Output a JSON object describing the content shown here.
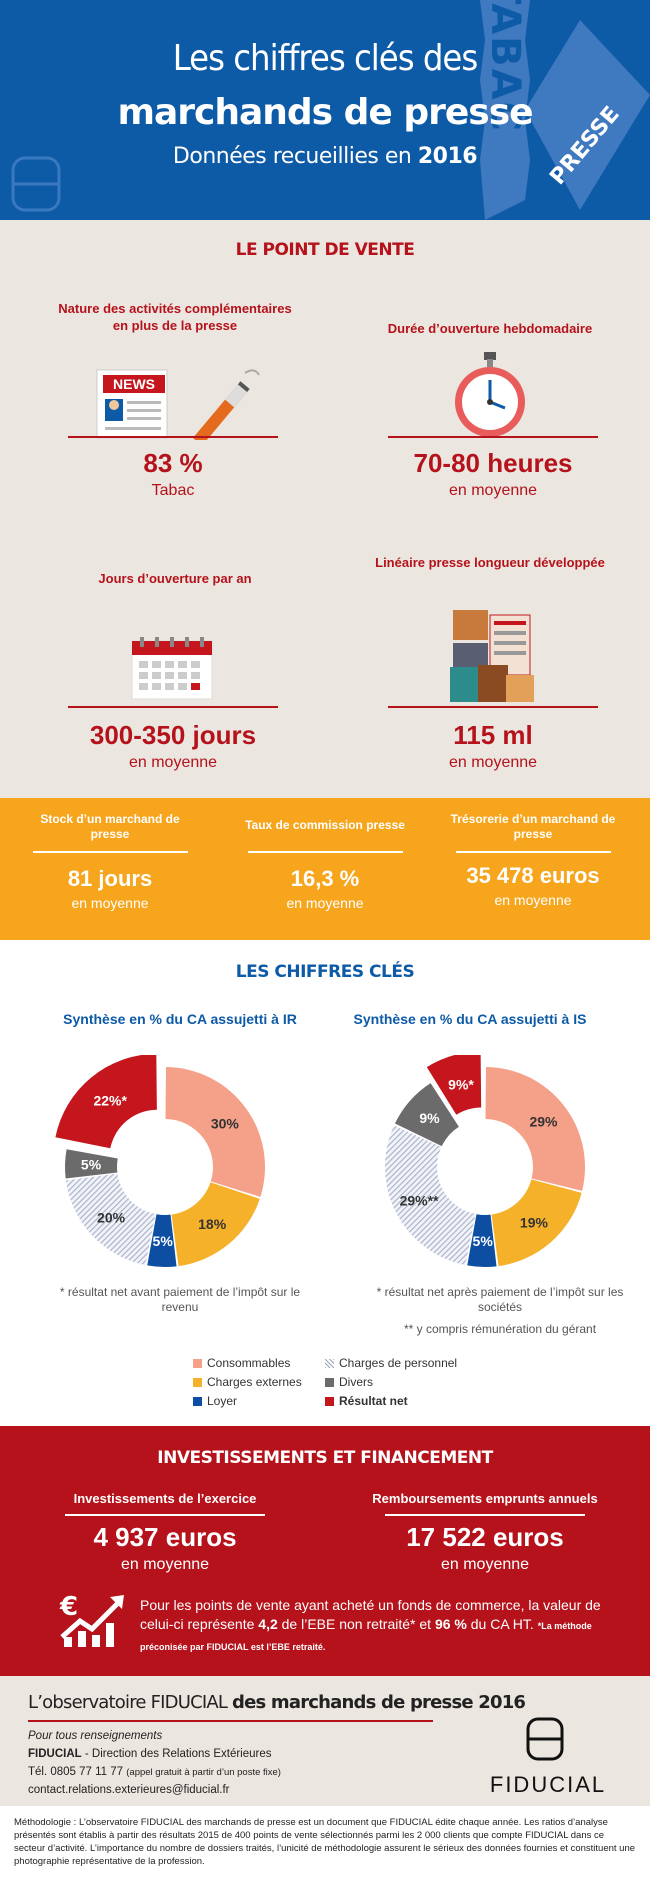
{
  "header": {
    "line1": "Les chiffres clés des",
    "line2": "marchands de presse",
    "line3_prefix": "Données recueillies en ",
    "line3_year": "2016",
    "sign_tabac": "TABAC",
    "sign_presse": "PRESSE"
  },
  "point_de_vente": {
    "title": "LE POINT DE VENTE",
    "activites": {
      "label": "Nature des activités complémentaires en plus de la presse",
      "value": "83 %",
      "sub": "Tabac",
      "icon_text": "NEWS"
    },
    "duree": {
      "label": "Durée d’ouverture hebdomadaire",
      "value": "70-80 heures",
      "sub": "en moyenne"
    },
    "jours": {
      "label": "Jours d’ouverture par an",
      "value": "300-350 jours",
      "sub": "en moyenne"
    },
    "lineaire": {
      "label": "Linéaire presse longueur développée",
      "value": "115 ml",
      "sub": "en moyenne"
    }
  },
  "orange": {
    "stock": {
      "label": "Stock d’un marchand de presse",
      "value": "81 jours",
      "sub": "en moyenne"
    },
    "taux": {
      "label": "Taux de commission presse",
      "value": "16,3 %",
      "sub": "en moyenne"
    },
    "tresorerie": {
      "label": "Trésorerie d’un marchand de presse",
      "value": "35 478 euros",
      "sub": "en moyenne"
    }
  },
  "cles": {
    "title": "LES CHIFFRES CLÉS",
    "ir": {
      "title": "Synthèse en % du CA assujetti à IR",
      "note": "* résultat net avant paiement de l’impôt sur le revenu"
    },
    "is": {
      "title": "Synthèse en % du CA assujetti à IS",
      "note": "* résultat net après paiement de l’impôt sur les sociétés",
      "note2": "** y compris rémunération du gérant"
    },
    "legend": [
      "Consommables",
      "Charges de personnel",
      "Charges externes",
      "Divers",
      "Loyer",
      "Résultat net"
    ]
  },
  "chart_data": [
    {
      "type": "pie",
      "title": "Synthèse en % du CA assujetti à IR",
      "categories": [
        "Consommables",
        "Charges externes",
        "Loyer",
        "Charges de personnel",
        "Divers",
        "Résultat net"
      ],
      "values": [
        30,
        18,
        5,
        20,
        5,
        22
      ],
      "labels": [
        "30%",
        "18%",
        "5%",
        "20%",
        "5%",
        "22%*"
      ]
    },
    {
      "type": "pie",
      "title": "Synthèse en % du CA assujetti à IS",
      "categories": [
        "Consommables",
        "Charges externes",
        "Loyer",
        "Charges de personnel",
        "Divers",
        "Résultat net"
      ],
      "values": [
        29,
        19,
        5,
        29,
        9,
        9
      ],
      "labels": [
        "29%",
        "19%",
        "5%",
        "29%**",
        "9%",
        "9%*"
      ]
    }
  ],
  "colors": {
    "consommables": "#f5a088",
    "charges_externes": "#f6b12a",
    "loyer": "#0d4ea3",
    "charges_personnel": "#c9d0e0",
    "divers": "#6b6b6b",
    "resultat_net": "#c4161c"
  },
  "inv": {
    "title": "INVESTISSEMENTS ET FINANCEMENT",
    "invest": {
      "label": "Investissements de l’exercice",
      "value": "4 937 euros",
      "sub": "en moyenne"
    },
    "rembours": {
      "label": "Remboursements emprunts annuels",
      "value": "17 522 euros",
      "sub": "en moyenne"
    },
    "para_a": "Pour les points de vente ayant acheté un fonds de commerce, la valeur de celui-ci représente ",
    "para_b": "4,2",
    "para_c": " de l’EBE non retraité* et ",
    "para_d": "96 %",
    "para_e": " du CA HT. ",
    "para_note": "*La méthode préconisée par FIDUCIAL est l’EBE retraité."
  },
  "footer": {
    "obs_a": "L’observatoire FIDUCIAL ",
    "obs_b": "des marchands de presse 2016",
    "renseign": "Pour tous renseignements",
    "fiducial_bold": "FIDUCIAL",
    "direction": " - Direction des Relations Extérieures",
    "tel": "Tél. 0805 77 11 77 ",
    "tel_note": "(appel gratuit à partir d’un poste fixe)",
    "email": "contact.relations.exterieures@fiducial.fr",
    "brand": "FIDUCIAL"
  },
  "methodologie": "Méthodologie : L’observatoire FIDUCIAL des marchands de presse est un document que FIDUCIAL édite chaque année. Les ratios d’analyse présentés sont établis à partir des résultats 2015 de 400 points de vente sélectionnés parmi les 2 000 clients que compte FIDUCIAL dans ce secteur d’activité. L’importance du nombre de dossiers traités, l’unicité de méthodologie assurent le sérieux des données fournies et constituent une photographie représentative de la profession."
}
